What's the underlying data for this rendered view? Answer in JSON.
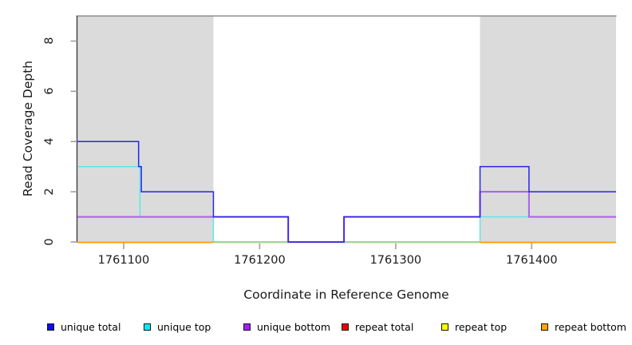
{
  "figure": {
    "xlabel": "Coordinate in Reference Genome",
    "ylabel": "Read Coverage Depth"
  },
  "chart_data": {
    "type": "line",
    "subtype": "step-coverage",
    "title": "",
    "xlabel": "Coordinate in Reference Genome",
    "ylabel": "Read Coverage Depth",
    "xlim": [
      1761066,
      1761462
    ],
    "ylim": [
      0,
      9
    ],
    "x_ticks": [
      "1761100",
      "1761200",
      "1761300",
      "1761400"
    ],
    "x_tick_values": [
      1761100,
      1761200,
      1761300,
      1761400
    ],
    "y_ticks": [
      "0",
      "2",
      "4",
      "6",
      "8"
    ],
    "y_tick_values": [
      0,
      2,
      4,
      6,
      8
    ],
    "grid": false,
    "legend_position": "bottom",
    "repeat_region_color": "#dbdbdb",
    "repeat_regions": [
      {
        "x0": 1761066,
        "x1": 1761166
      },
      {
        "x0": 1761362,
        "x1": 1761462
      }
    ],
    "series": [
      {
        "name": "unique total",
        "line_color": "#2b22ee",
        "legend_color": "#0d0df2",
        "width": 1.5,
        "steps": [
          [
            1761066,
            4
          ],
          [
            1761111,
            3
          ],
          [
            1761113,
            2
          ],
          [
            1761166,
            1
          ],
          [
            1761221,
            0
          ],
          [
            1761262,
            1
          ],
          [
            1761362,
            3
          ],
          [
            1761398,
            2
          ],
          [
            1761462,
            2
          ]
        ]
      },
      {
        "name": "unique top",
        "line_color": "#5ae6e6",
        "legend_color": "#00eeee",
        "width": 1.4,
        "steps": [
          [
            1761066,
            3
          ],
          [
            1761112,
            1
          ],
          [
            1761166,
            0
          ],
          [
            1761362,
            1
          ],
          [
            1761462,
            1
          ]
        ]
      },
      {
        "name": "unique bottom",
        "line_color": "#ac66e8",
        "legend_color": "#a020f0",
        "width": 2.1,
        "steps": [
          [
            1761066,
            1
          ],
          [
            1761221,
            0
          ],
          [
            1761262,
            1
          ],
          [
            1761362,
            2
          ],
          [
            1761398,
            1
          ],
          [
            1761462,
            1
          ]
        ]
      },
      {
        "name": "repeat total",
        "line_color": "#ee0000",
        "legend_color": "#ee0000",
        "width": 1.4,
        "value": 0,
        "segments": [
          [
            1761066,
            1761166
          ],
          [
            1761362,
            1761462
          ]
        ]
      },
      {
        "name": "repeat top",
        "line_color": "#ffff00",
        "legend_color": "#ffff00",
        "width": 1.4,
        "value": 0,
        "segments": [
          [
            1761066,
            1761166
          ],
          [
            1761362,
            1761462
          ]
        ]
      },
      {
        "name": "repeat bottom",
        "line_color": "#ffa00a",
        "legend_color": "#ffa500",
        "width": 1.8,
        "value": 0,
        "segments": [
          [
            1761066,
            1761166
          ],
          [
            1761362,
            1761462
          ]
        ]
      }
    ],
    "baseline_overlap_tint": {
      "x0": 1761166,
      "x1": 1761362,
      "green": "#8cc98c",
      "pale_yellow": "#eaeaa8"
    },
    "frame": {
      "top_line_color": "#8f8f8f",
      "y_axis_line_color": "#3f3f3f",
      "tick_color": "#999999"
    }
  },
  "legend": {
    "items": [
      {
        "label": "unique total"
      },
      {
        "label": "unique top"
      },
      {
        "label": "unique bottom"
      },
      {
        "label": "repeat total"
      },
      {
        "label": "repeat top"
      },
      {
        "label": "repeat bottom"
      }
    ]
  }
}
